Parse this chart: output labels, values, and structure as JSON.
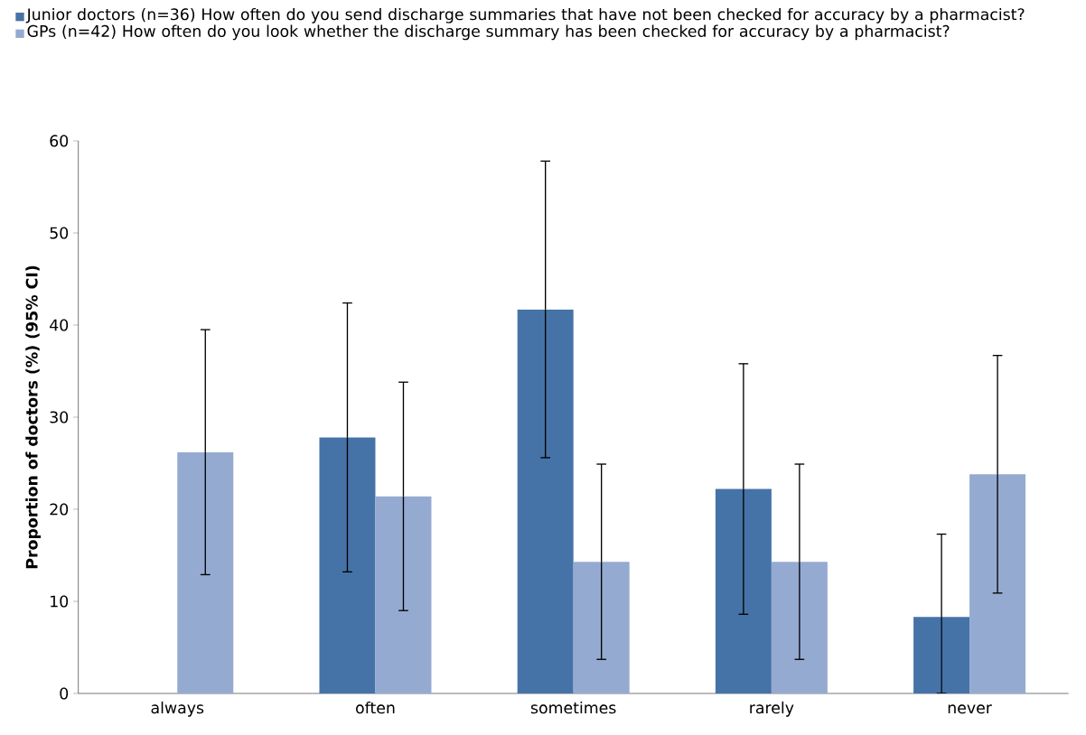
{
  "chart_data": {
    "type": "bar",
    "ylabel": "Proportion of doctors (%) (95% CI)",
    "categories": [
      "always",
      "often",
      "sometimes",
      "rarely",
      "never"
    ],
    "series": [
      {
        "name": "Junior doctors (n=36) How often do you send discharge summaries that have not been checked for accuracy by a pharmacist?",
        "color": "#4673a7",
        "values": [
          0,
          27.8,
          41.7,
          22.2,
          8.3
        ],
        "errors": [
          null,
          [
            13.2,
            42.4
          ],
          [
            25.6,
            57.8
          ],
          [
            8.6,
            35.8
          ],
          [
            0,
            17.3
          ]
        ]
      },
      {
        "name": "GPs (n=42) How often do you look whether the discharge summary has been checked for accuracy by a pharmacist?",
        "color": "#95aad1",
        "values": [
          26.2,
          21.4,
          14.3,
          14.3,
          23.8
        ],
        "errors": [
          [
            12.9,
            39.5
          ],
          [
            9.0,
            33.8
          ],
          [
            3.7,
            24.9
          ],
          [
            3.7,
            24.9
          ],
          [
            10.9,
            36.7
          ]
        ]
      }
    ],
    "ylim": [
      0,
      60
    ],
    "yticks": [
      0,
      10,
      20,
      30,
      40,
      50,
      60
    ],
    "grid": false,
    "legend": "top"
  }
}
